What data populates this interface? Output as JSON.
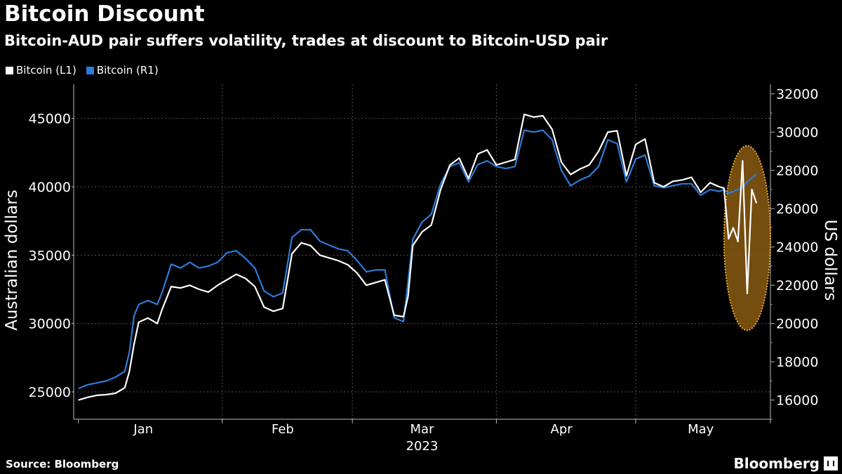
{
  "header": {
    "title": "Bitcoin Discount",
    "subtitle": "Bitcoin-AUD pair suffers volatility, trades at discount to Bitcoin-USD pair"
  },
  "footer": {
    "source": "Source: Bloomberg",
    "brand": "Bloomberg"
  },
  "colors": {
    "aud": "#ffffff",
    "usd": "#2e7bd8",
    "highlight_fill": "#8a5a12",
    "highlight_border": "#e8a838",
    "grid": "#555555",
    "background": "#000000"
  },
  "chart_data": {
    "type": "line",
    "title": "Bitcoin Discount",
    "subtitle": "Bitcoin-AUD pair suffers volatility, trades at discount to Bitcoin-USD pair",
    "ylabel_left": "Australian dollars",
    "ylabel_right": "US dollars",
    "ylim_left": [
      23000,
      47500
    ],
    "ylim_right": [
      15000,
      32500
    ],
    "yticks_left": [
      25000,
      30000,
      35000,
      40000,
      45000
    ],
    "yticks_right": [
      16000,
      18000,
      20000,
      22000,
      24000,
      26000,
      28000,
      30000,
      32000
    ],
    "xticks": [
      {
        "label": "Jan",
        "date": "2023-01-15"
      },
      {
        "label": "Feb",
        "date": "2023-02-14"
      },
      {
        "label": "Mar",
        "date": "2023-03-16"
      },
      {
        "label": "Apr",
        "date": "2023-04-15"
      },
      {
        "label": "May",
        "date": "2023-05-15"
      }
    ],
    "year_label": "2023",
    "xlim": [
      "2022-12-31",
      "2023-05-30"
    ],
    "legend_placement": "top-left",
    "grid": true,
    "highlight": {
      "shape": "ellipse",
      "from": "2023-05-20",
      "to": "2023-05-30",
      "y_left_range": [
        29500,
        43000
      ]
    },
    "series": [
      {
        "name": "Bitcoin (L1)",
        "axis": "left",
        "x": [
          "2023-01-01",
          "2023-01-03",
          "2023-01-05",
          "2023-01-07",
          "2023-01-09",
          "2023-01-11",
          "2023-01-12",
          "2023-01-13",
          "2023-01-14",
          "2023-01-16",
          "2023-01-18",
          "2023-01-19",
          "2023-01-21",
          "2023-01-23",
          "2023-01-25",
          "2023-01-27",
          "2023-01-29",
          "2023-01-31",
          "2023-02-02",
          "2023-02-04",
          "2023-02-06",
          "2023-02-08",
          "2023-02-10",
          "2023-02-12",
          "2023-02-14",
          "2023-02-16",
          "2023-02-18",
          "2023-02-20",
          "2023-02-22",
          "2023-02-24",
          "2023-02-26",
          "2023-02-28",
          "2023-03-02",
          "2023-03-04",
          "2023-03-06",
          "2023-03-08",
          "2023-03-10",
          "2023-03-12",
          "2023-03-13",
          "2023-03-14",
          "2023-03-16",
          "2023-03-18",
          "2023-03-20",
          "2023-03-22",
          "2023-03-24",
          "2023-03-26",
          "2023-03-28",
          "2023-03-30",
          "2023-04-01",
          "2023-04-03",
          "2023-04-05",
          "2023-04-07",
          "2023-04-09",
          "2023-04-11",
          "2023-04-13",
          "2023-04-15",
          "2023-04-17",
          "2023-04-19",
          "2023-04-21",
          "2023-04-23",
          "2023-04-25",
          "2023-04-27",
          "2023-04-29",
          "2023-05-01",
          "2023-05-03",
          "2023-05-05",
          "2023-05-07",
          "2023-05-09",
          "2023-05-11",
          "2023-05-13",
          "2023-05-15",
          "2023-05-17",
          "2023-05-19",
          "2023-05-20",
          "2023-05-21",
          "2023-05-22",
          "2023-05-23",
          "2023-05-24",
          "2023-05-25",
          "2023-05-26",
          "2023-05-27"
        ],
        "values": [
          24400,
          24600,
          24750,
          24800,
          24900,
          25300,
          26500,
          28500,
          30100,
          30400,
          30000,
          31000,
          32700,
          32600,
          32800,
          32500,
          32300,
          32800,
          33200,
          33600,
          33300,
          32700,
          31200,
          30900,
          31100,
          35100,
          35900,
          35700,
          35000,
          34800,
          34600,
          34300,
          33700,
          32800,
          33000,
          33200,
          30600,
          30500,
          32000,
          35700,
          36700,
          37200,
          39800,
          41600,
          42100,
          40600,
          42400,
          42700,
          41600,
          41800,
          42000,
          45300,
          45100,
          45200,
          44200,
          41800,
          40900,
          41300,
          41600,
          42600,
          44000,
          44100,
          40800,
          43100,
          43500,
          40300,
          40000,
          40400,
          40500,
          40700,
          39600,
          40300,
          40000,
          39900,
          36200,
          37000,
          36000,
          41900,
          32200,
          39800,
          38800
        ]
      },
      {
        "name": "Bitcoin (R1)",
        "axis": "right",
        "x": [
          "2023-01-01",
          "2023-01-03",
          "2023-01-05",
          "2023-01-07",
          "2023-01-09",
          "2023-01-11",
          "2023-01-12",
          "2023-01-13",
          "2023-01-14",
          "2023-01-16",
          "2023-01-18",
          "2023-01-19",
          "2023-01-21",
          "2023-01-23",
          "2023-01-25",
          "2023-01-27",
          "2023-01-29",
          "2023-01-31",
          "2023-02-02",
          "2023-02-04",
          "2023-02-06",
          "2023-02-08",
          "2023-02-10",
          "2023-02-12",
          "2023-02-14",
          "2023-02-16",
          "2023-02-18",
          "2023-02-20",
          "2023-02-22",
          "2023-02-24",
          "2023-02-26",
          "2023-02-28",
          "2023-03-02",
          "2023-03-04",
          "2023-03-06",
          "2023-03-08",
          "2023-03-10",
          "2023-03-12",
          "2023-03-13",
          "2023-03-14",
          "2023-03-16",
          "2023-03-18",
          "2023-03-20",
          "2023-03-22",
          "2023-03-24",
          "2023-03-26",
          "2023-03-28",
          "2023-03-30",
          "2023-04-01",
          "2023-04-03",
          "2023-04-05",
          "2023-04-07",
          "2023-04-09",
          "2023-04-11",
          "2023-04-13",
          "2023-04-15",
          "2023-04-17",
          "2023-04-19",
          "2023-04-21",
          "2023-04-23",
          "2023-04-25",
          "2023-04-27",
          "2023-04-29",
          "2023-05-01",
          "2023-05-03",
          "2023-05-05",
          "2023-05-07",
          "2023-05-09",
          "2023-05-11",
          "2023-05-13",
          "2023-05-15",
          "2023-05-17",
          "2023-05-19",
          "2023-05-20",
          "2023-05-21",
          "2023-05-22",
          "2023-05-23",
          "2023-05-24",
          "2023-05-25",
          "2023-05-26",
          "2023-05-27"
        ],
        "values": [
          16600,
          16800,
          16900,
          17000,
          17200,
          17500,
          18500,
          20400,
          21000,
          21200,
          21000,
          21600,
          23100,
          22900,
          23200,
          22900,
          23000,
          23200,
          23700,
          23800,
          23400,
          22900,
          21700,
          21400,
          21600,
          24500,
          24900,
          24900,
          24300,
          24100,
          23900,
          23800,
          23300,
          22700,
          22800,
          22800,
          20300,
          20100,
          22200,
          24400,
          25300,
          25700,
          27300,
          28200,
          28400,
          27400,
          28300,
          28500,
          28200,
          28100,
          28200,
          30100,
          30000,
          30100,
          29600,
          28000,
          27200,
          27500,
          27700,
          28200,
          29600,
          29400,
          27400,
          28600,
          28800,
          27200,
          27100,
          27200,
          27300,
          27300,
          26700,
          27000,
          26900,
          27000,
          26800,
          26900,
          27000,
          27100,
          27400,
          27600,
          27800
        ]
      }
    ]
  }
}
